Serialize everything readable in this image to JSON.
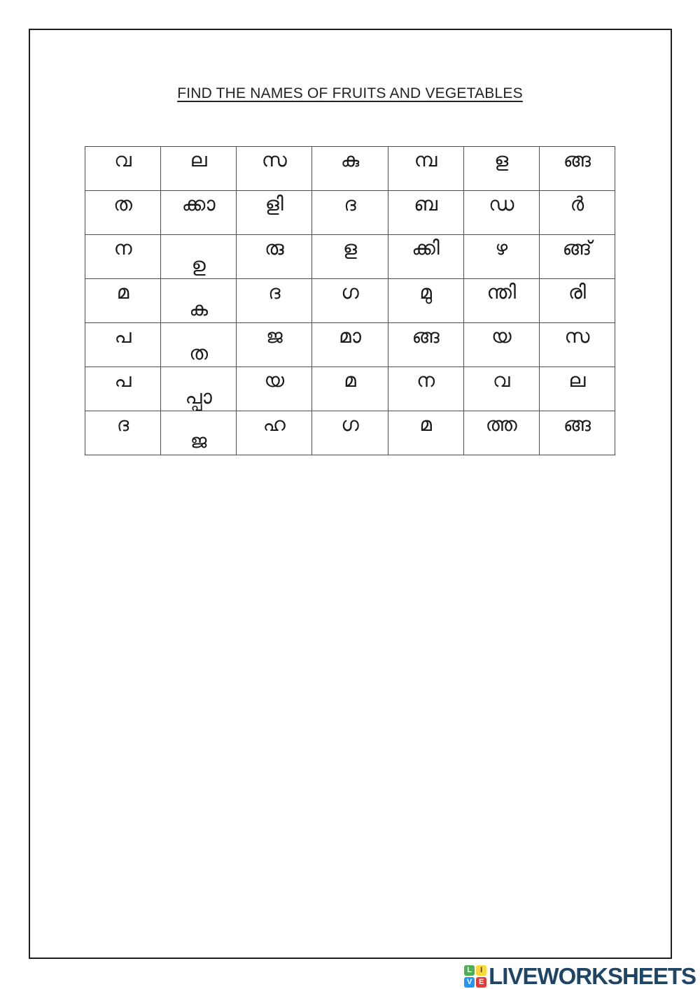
{
  "page": {
    "title": "FIND THE NAMES OF FRUITS AND VEGETABLES"
  },
  "grid": {
    "rows": [
      [
        "വ",
        "ല",
        "സ",
        "കു",
        "മ്പ",
        "ള",
        "ങ്ങ"
      ],
      [
        "ത",
        "ക്കാ",
        "ളി",
        "ദ",
        "ബ",
        "ഡ",
        "ർ"
      ],
      [
        "ന",
        "ഉ",
        "രു",
        "ള",
        "ക്കി",
        "ഴ",
        "ങ്ങ്"
      ],
      [
        "മ",
        "ക",
        "ദ",
        "ഗ",
        "മു",
        "ന്തി",
        "രി"
      ],
      [
        "പ",
        "ത",
        "ജ",
        "മാ",
        "ങ്ങ",
        "യ",
        "സ"
      ],
      [
        "പ",
        "പ്പാ",
        "യ",
        "മ",
        "ന",
        "വ",
        "ല"
      ],
      [
        "ദ",
        "ജ",
        "ഹ",
        "ഗ",
        "മ",
        "ത്ത",
        "ങ്ങ"
      ]
    ],
    "bottom_aligned_cells": [
      [
        2,
        1
      ],
      [
        3,
        1
      ],
      [
        4,
        1
      ],
      [
        5,
        1
      ],
      [
        6,
        1
      ]
    ]
  },
  "footer": {
    "brand": "LIVEWORKSHEETS",
    "brand_color": "#1e4466",
    "logo_tiles": [
      {
        "letter": "L",
        "bg": "#4caf50",
        "fg": "#ffffff"
      },
      {
        "letter": "I",
        "bg": "#fdd835",
        "fg": "#1e4466"
      },
      {
        "letter": "V",
        "bg": "#2196f3",
        "fg": "#ffffff"
      },
      {
        "letter": "E",
        "bg": "#e53935",
        "fg": "#ffffff"
      }
    ]
  }
}
